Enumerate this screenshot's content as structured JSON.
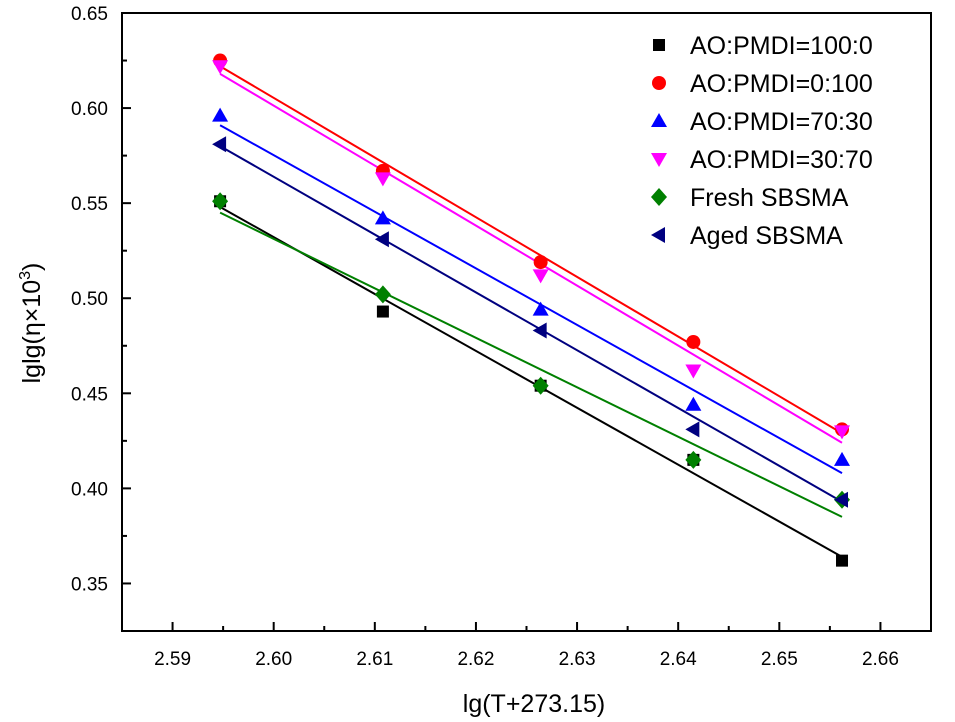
{
  "chart_data": {
    "type": "scatter",
    "title": "",
    "xlabel": "lg(T+273.15)",
    "ylabel_main": "lglg(η×10",
    "ylabel_sup": "3",
    "ylabel_close": ")",
    "xlim": [
      2.585,
      2.665
    ],
    "ylim": [
      0.325,
      0.65
    ],
    "xticks": [
      2.59,
      2.6,
      2.61,
      2.62,
      2.63,
      2.64,
      2.65,
      2.66
    ],
    "xtick_labels": [
      "2.59",
      "2.60",
      "2.61",
      "2.62",
      "2.63",
      "2.64",
      "2.65",
      "2.66"
    ],
    "yticks": [
      0.35,
      0.4,
      0.45,
      0.5,
      0.55,
      0.6,
      0.65
    ],
    "ytick_labels": [
      "0.35",
      "0.40",
      "0.45",
      "0.50",
      "0.55",
      "0.60",
      "0.65"
    ],
    "x": [
      2.5947,
      2.6108,
      2.6264,
      2.6415,
      2.6562
    ],
    "legend_position": "top-right",
    "series": [
      {
        "name": "AO:PMDI=100:0",
        "marker": "square",
        "color": "#000000",
        "values": [
          0.551,
          0.493,
          0.454,
          0.415,
          0.362
        ],
        "fit": [
          0.548,
          0.364
        ]
      },
      {
        "name": "AO:PMDI=0:100",
        "marker": "circle",
        "color": "#ff0000",
        "values": [
          0.625,
          0.567,
          0.519,
          0.477,
          0.431
        ],
        "fit": [
          0.622,
          0.429
        ]
      },
      {
        "name": "AO:PMDI=70:30",
        "marker": "triangle-up",
        "color": "#0000ff",
        "values": [
          0.596,
          0.542,
          0.494,
          0.444,
          0.415
        ],
        "fit": [
          0.591,
          0.408
        ]
      },
      {
        "name": "AO:PMDI=30:70",
        "marker": "triangle-down",
        "color": "#ff00ff",
        "values": [
          0.622,
          0.563,
          0.512,
          0.462,
          0.43
        ],
        "fit": [
          0.618,
          0.424
        ]
      },
      {
        "name": "Fresh SBSMA",
        "marker": "diamond",
        "color": "#008000",
        "values": [
          0.551,
          0.502,
          0.454,
          0.415,
          0.394
        ],
        "fit": [
          0.545,
          0.385
        ]
      },
      {
        "name": "Aged SBSMA",
        "marker": "triangle-left",
        "color": "#000080",
        "values": [
          0.581,
          0.531,
          0.483,
          0.431,
          0.394
        ],
        "fit": [
          0.58,
          0.393
        ]
      }
    ]
  }
}
